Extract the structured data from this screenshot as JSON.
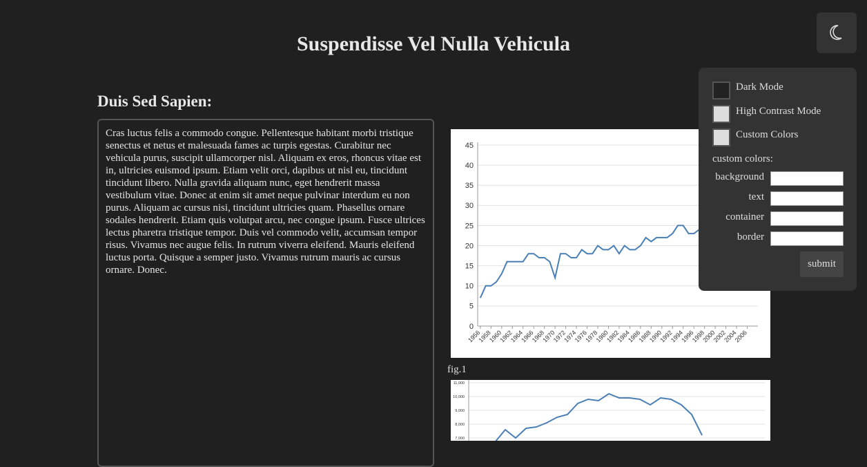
{
  "header": {
    "title": "Suspendisse Vel Nulla Vehicula"
  },
  "section": {
    "heading": "Duis Sed Sapien:",
    "text": "Cras luctus felis a commodo congue. Pellentesque habitant morbi tristique senectus et netus et malesuada fames ac turpis egestas. Curabitur nec vehicula purus, suscipit ullamcorper nisl. Aliquam ex eros, rhoncus vitae est in, ultricies euismod ipsum. Etiam velit orci, dapibus ut nisl eu, tincidunt tincidunt libero. Nulla gravida aliquam nunc, eget hendrerit massa vestibulum vitae. Donec at enim sit amet neque pulvinar interdum eu non purus. Aliquam ac cursus nisi, tincidunt ultricies quam. Phasellus ornare sodales hendrerit. Etiam quis volutpat arcu, nec congue ipsum. Fusce ultrices lectus pharetra tristique tempor. Duis vel commodo velit, accumsan tempor risus. Vivamus nec augue felis. In rutrum viverra eleifend. Mauris eleifend luctus porta. Quisque a semper justo. Vivamus rutrum mauris ac cursus ornare. Donec."
  },
  "figure_caption": "fig.1",
  "chart_data": [
    {
      "type": "line",
      "x": [
        1956,
        1957,
        1958,
        1959,
        1960,
        1961,
        1962,
        1963,
        1964,
        1965,
        1966,
        1967,
        1968,
        1969,
        1970,
        1971,
        1972,
        1973,
        1974,
        1975,
        1976,
        1977,
        1978,
        1979,
        1980,
        1981,
        1982,
        1983,
        1984,
        1985,
        1986,
        1987,
        1988,
        1989,
        1990,
        1991,
        1992,
        1993,
        1994,
        1995,
        1996,
        1997
      ],
      "values": [
        7,
        10,
        10,
        11,
        13,
        16,
        16,
        16,
        16,
        18,
        18,
        17,
        17,
        16,
        12,
        18,
        18,
        17,
        17,
        19,
        18,
        18,
        20,
        19,
        19,
        20,
        18,
        20,
        19,
        19,
        20,
        22,
        21,
        22,
        22,
        22,
        23,
        25,
        25,
        23,
        23,
        24
      ],
      "color": "#4a7fb5",
      "xlim": [
        1955.5,
        2008
      ],
      "xticks": [
        1956,
        1958,
        1960,
        1962,
        1964,
        1966,
        1968,
        1970,
        1972,
        1974,
        1976,
        1978,
        1980,
        1982,
        1984,
        1986,
        1988,
        1990,
        1992,
        1994,
        1996,
        1998,
        2000,
        2002,
        2004,
        2006
      ],
      "ylim": [
        0,
        45
      ],
      "yticks": [
        0,
        5,
        10,
        15,
        20,
        25,
        30,
        35,
        40,
        45
      ],
      "grid": true
    },
    {
      "type": "line",
      "categories": [
        null,
        null,
        null,
        null,
        null,
        null,
        null,
        null,
        null,
        null,
        null,
        null,
        null,
        null,
        null,
        null,
        null,
        null,
        null,
        null,
        null
      ],
      "values": [
        6700,
        7600,
        7000,
        7700,
        7800,
        8100,
        8500,
        8700,
        9500,
        9800,
        9700,
        10200,
        9900,
        9900,
        9800,
        9400,
        9900,
        9800,
        9400,
        8700,
        7200
      ],
      "color": "#4a7fb5",
      "ylim": [
        6000,
        11200
      ],
      "yticks": [
        {
          "value": 7000,
          "label": "7,000"
        },
        {
          "value": 8000,
          "label": "8,000"
        },
        {
          "value": 9000,
          "label": "9,000"
        },
        {
          "value": 10000,
          "label": "10,000"
        },
        {
          "value": 11000,
          "label": "11,000"
        }
      ],
      "grid": true
    }
  ],
  "settings": {
    "options": [
      "Dark Mode",
      "High Contrast Mode",
      "Custom Colors"
    ],
    "custom_colors_label": "custom colors:",
    "fields": [
      "background",
      "text",
      "container",
      "border"
    ],
    "submit": "submit"
  }
}
